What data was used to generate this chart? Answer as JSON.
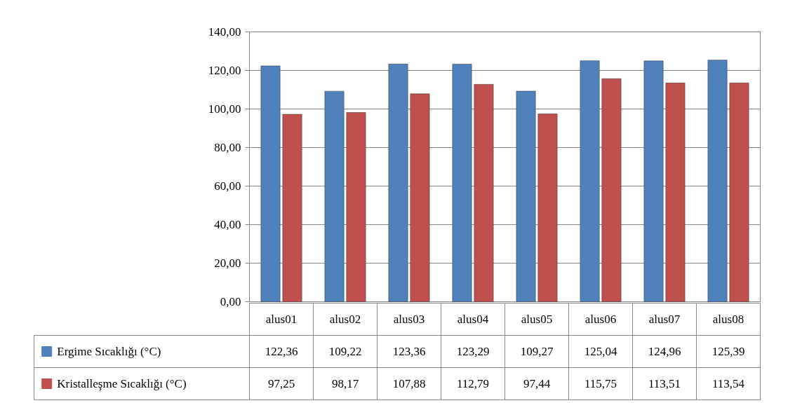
{
  "chart_data": {
    "type": "bar",
    "categories": [
      "alus01",
      "alus02",
      "alus03",
      "alus04",
      "alus05",
      "alus06",
      "alus07",
      "alus08"
    ],
    "series": [
      {
        "name": "Ergime Sıcaklığı (°C)",
        "color": "#4f81bd",
        "values": [
          122.36,
          109.22,
          123.36,
          123.29,
          109.27,
          125.04,
          124.96,
          125.39
        ],
        "value_labels": [
          "122,36",
          "109,22",
          "123,36",
          "123,29",
          "109,27",
          "125,04",
          "124,96",
          "125,39"
        ]
      },
      {
        "name": "Kristalleşme Sıcaklığı (°C)",
        "color": "#c0504d",
        "values": [
          97.25,
          98.17,
          107.88,
          112.79,
          97.44,
          115.75,
          113.51,
          113.54
        ],
        "value_labels": [
          "97,25",
          "98,17",
          "107,88",
          "112,79",
          "97,44",
          "115,75",
          "113,51",
          "113,54"
        ]
      }
    ],
    "ylim": [
      0,
      140
    ],
    "yticks": [
      {
        "value": 0,
        "label": "0,00"
      },
      {
        "value": 20,
        "label": "20,00"
      },
      {
        "value": 40,
        "label": "40,00"
      },
      {
        "value": 60,
        "label": "60,00"
      },
      {
        "value": 80,
        "label": "80,00"
      },
      {
        "value": 100,
        "label": "100,00"
      },
      {
        "value": 120,
        "label": "120,00"
      },
      {
        "value": 140,
        "label": "140,00"
      }
    ],
    "grid": "y",
    "legend": "bottom"
  }
}
